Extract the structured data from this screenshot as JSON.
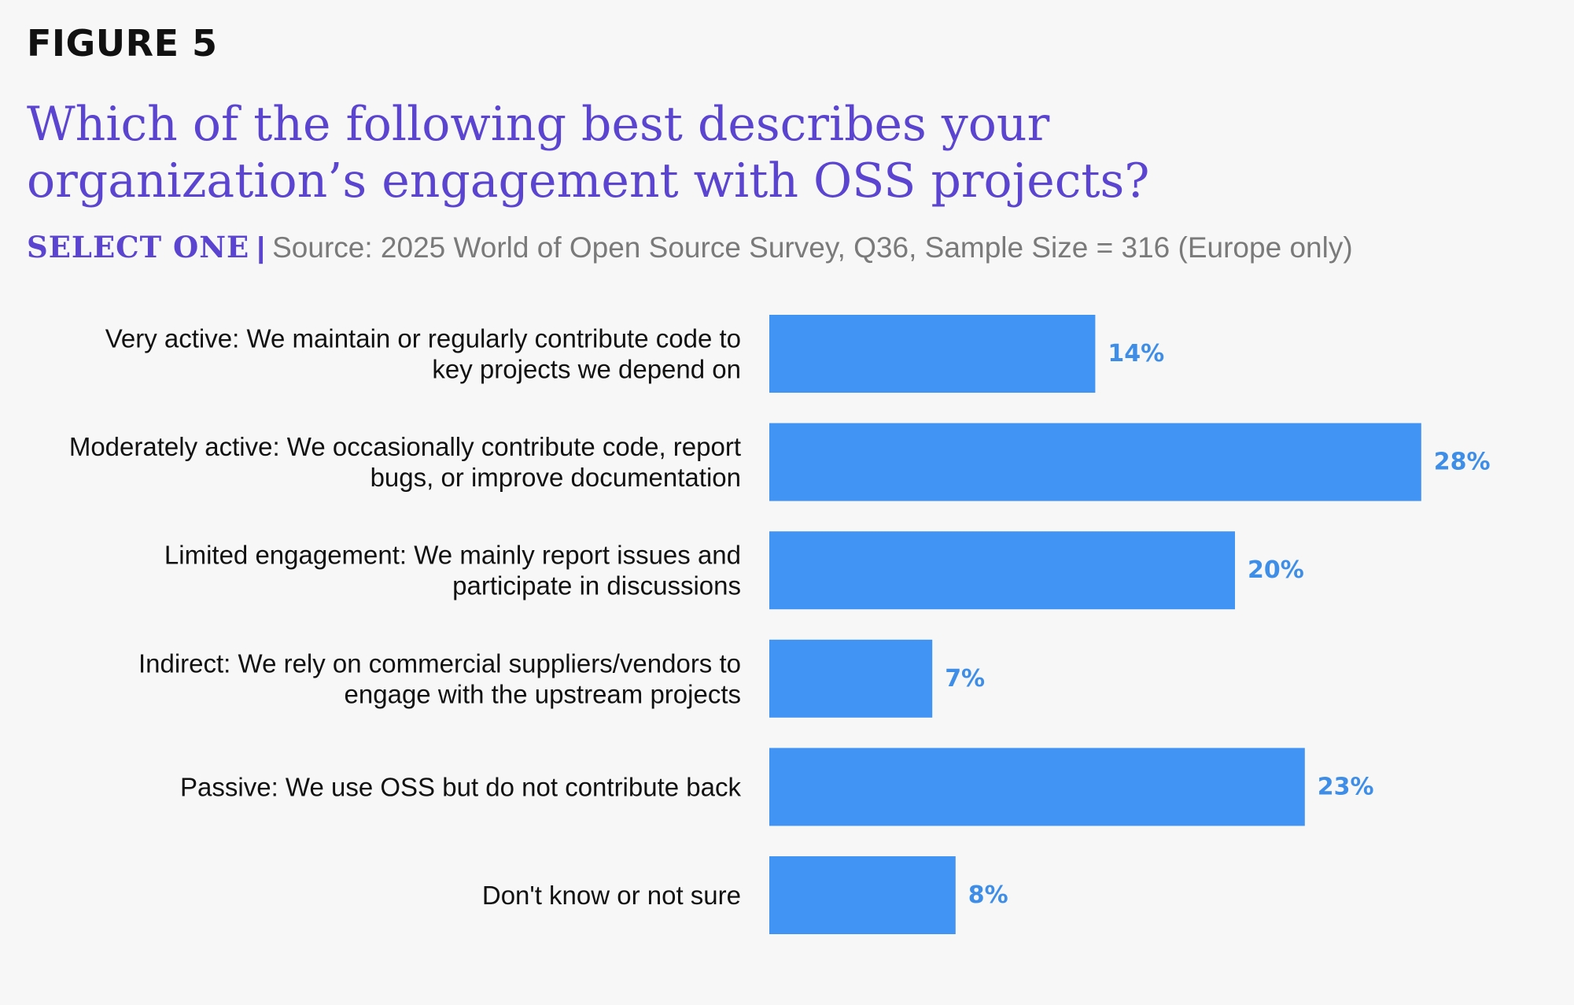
{
  "figure_label": "FIGURE 5",
  "title": "Which of the following best describes your organization’s engagement with OSS projects?",
  "subtitle": {
    "select": "SELECT ONE",
    "separator": "|",
    "source": "Source: 2025 World of Open Source Survey, Q36, Sample Size = 316 (Europe only)"
  },
  "colors": {
    "bar": "#4193f4",
    "value_label": "#3e8ee8",
    "title": "#5b44cf"
  },
  "chart_data": {
    "type": "bar",
    "orientation": "horizontal",
    "categories": [
      [
        "Very active: We maintain or regularly contribute code to",
        "key projects we depend on"
      ],
      [
        "Moderately active: We occasionally contribute code, report",
        "bugs, or improve documentation"
      ],
      [
        "Limited engagement: We mainly report issues and",
        "participate in discussions"
      ],
      [
        "Indirect: We rely on commercial suppliers/vendors to",
        "engage with the upstream projects"
      ],
      [
        "Passive: We use OSS but do not contribute back"
      ],
      [
        "Don't know or not sure"
      ]
    ],
    "values": [
      14,
      28,
      20,
      7,
      23,
      8
    ],
    "value_labels": [
      "14%",
      "28%",
      "20%",
      "7%",
      "23%",
      "8%"
    ],
    "unit": "%",
    "xlim": [
      0,
      32
    ],
    "grid": false,
    "legend": "none"
  }
}
